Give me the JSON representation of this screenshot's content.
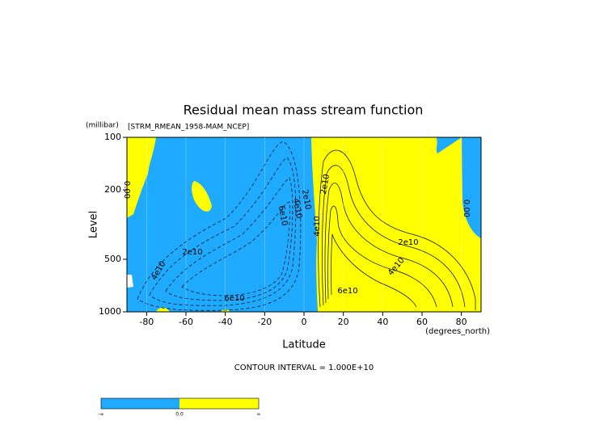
{
  "chart_data": {
    "type": "contour",
    "title": "Residual mean mass stream function",
    "subtitle": "[STRM_RMEAN_1958-MAM_NCEP]",
    "x_label": "Latitude",
    "x_unit": "(degrees_north)",
    "y_label": "Level",
    "y_unit": "(millibar)",
    "xlim": [
      -90,
      90
    ],
    "xticks": [
      -80,
      -60,
      -40,
      -20,
      0,
      20,
      40,
      60,
      80
    ],
    "ylim": [
      1000,
      100
    ],
    "yticks": [
      100,
      200,
      500,
      1000
    ],
    "y_scale": "log",
    "footer": "CONTOUR INTERVAL = 1.000E+10",
    "negative_color": "#1eaaff",
    "positive_color": "#ffff00",
    "annotations": [
      "0.00",
      "0.00",
      "2e10",
      "4e10",
      "6e10",
      "6e10",
      "4e10",
      "2e10",
      "2e10",
      "4e10",
      "2e10",
      "4e10",
      "6e10"
    ],
    "colorbar_labels": [
      "-∞",
      "0.0",
      "∞"
    ]
  }
}
